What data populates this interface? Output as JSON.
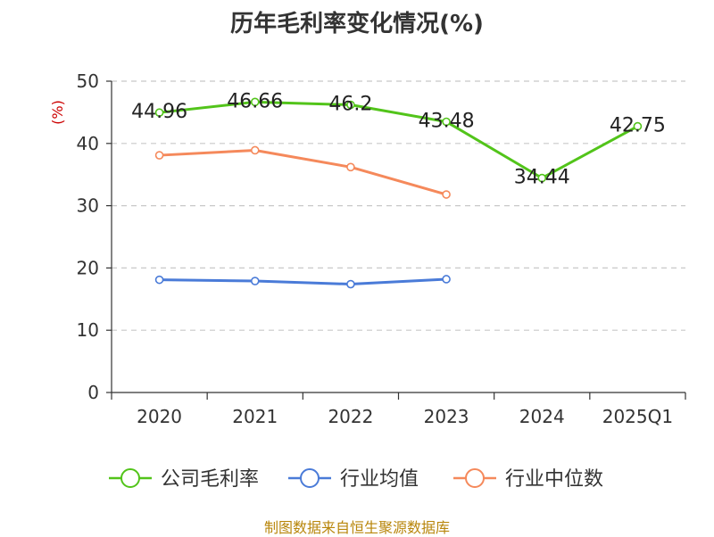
{
  "title": "历年毛利率变化情况(%)",
  "source": "制图数据来自恒生聚源数据库",
  "chart_data": {
    "type": "line",
    "title": "历年毛利率变化情况(%)",
    "ylabel": "(%)",
    "xlabel": "",
    "categories": [
      "2020",
      "2021",
      "2022",
      "2023",
      "2024",
      "2025Q1"
    ],
    "ylim": [
      0,
      50
    ],
    "yticks": [
      0,
      10,
      20,
      30,
      40,
      50
    ],
    "grid": true,
    "legend_position": "bottom",
    "series": [
      {
        "name": "公司毛利率",
        "color": "#52c41a",
        "values": [
          44.96,
          46.66,
          46.2,
          43.48,
          34.44,
          42.75
        ],
        "labels": [
          "44.96",
          "46.66",
          "46.2",
          "43.48",
          "34.44",
          "42.75"
        ]
      },
      {
        "name": "行业均值",
        "color": "#4a7bd8",
        "values": [
          18.1,
          17.9,
          17.4,
          18.2,
          null,
          null
        ]
      },
      {
        "name": "行业中位数",
        "color": "#f5895b",
        "values": [
          38.1,
          38.9,
          36.2,
          31.8,
          null,
          null
        ]
      }
    ]
  }
}
